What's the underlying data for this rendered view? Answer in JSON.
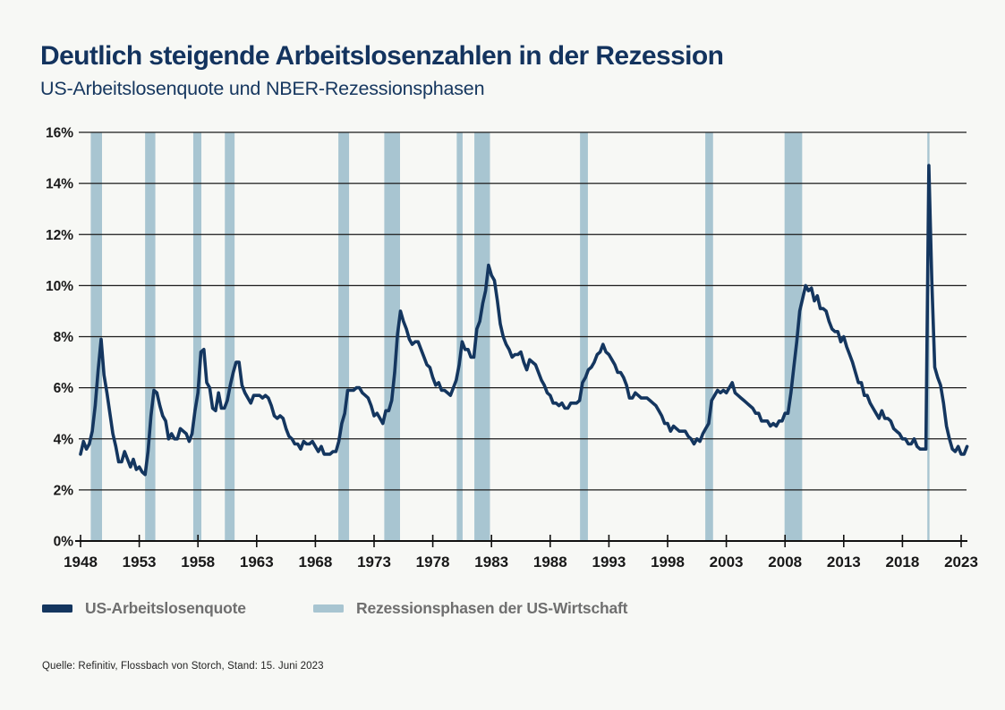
{
  "chart_data": {
    "type": "line",
    "title": "Deutlich steigende Arbeitslosenzahlen in der Rezession",
    "subtitle": "US-Arbeitslosenquote und NBER-Rezessionsphasen",
    "source": "Quelle: Refinitiv, Flossbach von Storch, Stand: 15. Juni 2023",
    "xlabel": "",
    "ylabel": "",
    "xlim": [
      1948,
      2023.6
    ],
    "ylim": [
      0,
      16
    ],
    "grid": "horizontal",
    "legend_position": "bottom-left",
    "x_ticks": [
      1948,
      1953,
      1958,
      1963,
      1968,
      1973,
      1978,
      1983,
      1988,
      1993,
      1998,
      2003,
      2008,
      2013,
      2018,
      2023
    ],
    "y_ticks": [
      0,
      2,
      4,
      6,
      8,
      10,
      12,
      14,
      16
    ],
    "y_tick_suffix": "%",
    "colors": {
      "line": "#14365f",
      "recession_band": "#a8c5d1",
      "grid": "#1a1a1a",
      "axis": "#111111",
      "tick_label": "#181818",
      "title": "#13335e",
      "legend_text": "#6f6f6f",
      "background": "#f7f8f5"
    },
    "legend": [
      {
        "label": "US-Arbeitslosenquote",
        "color": "#14365f",
        "kind": "line"
      },
      {
        "label": "Rezessionsphasen der US-Wirtschaft",
        "color": "#a8c5d1",
        "kind": "band"
      }
    ],
    "recessions": [
      {
        "start": 1948.87,
        "end": 1949.83
      },
      {
        "start": 1953.5,
        "end": 1954.37
      },
      {
        "start": 1957.6,
        "end": 1958.29
      },
      {
        "start": 1960.29,
        "end": 1961.12
      },
      {
        "start": 1969.96,
        "end": 1970.87
      },
      {
        "start": 1973.87,
        "end": 1975.21
      },
      {
        "start": 1980.04,
        "end": 1980.54
      },
      {
        "start": 1981.54,
        "end": 1982.87
      },
      {
        "start": 1990.54,
        "end": 1991.21
      },
      {
        "start": 2001.21,
        "end": 2001.87
      },
      {
        "start": 2007.96,
        "end": 2009.46
      },
      {
        "start": 2020.12,
        "end": 2020.29
      }
    ],
    "series": [
      {
        "name": "US-Arbeitslosenquote",
        "unit": "%",
        "x_start": 1948.0,
        "x_step": 0.25,
        "values": [
          3.4,
          3.9,
          3.6,
          3.8,
          4.3,
          5.3,
          6.7,
          7.9,
          6.5,
          5.8,
          5.0,
          4.2,
          3.7,
          3.1,
          3.1,
          3.5,
          3.2,
          2.9,
          3.2,
          2.8,
          2.9,
          2.7,
          2.6,
          3.5,
          4.9,
          5.9,
          5.8,
          5.3,
          4.9,
          4.7,
          4.0,
          4.2,
          4.0,
          4.0,
          4.4,
          4.3,
          4.2,
          3.9,
          4.2,
          5.1,
          5.8,
          7.4,
          7.5,
          6.2,
          6.0,
          5.2,
          5.1,
          5.8,
          5.2,
          5.2,
          5.5,
          6.1,
          6.6,
          7.0,
          7.0,
          6.1,
          5.8,
          5.6,
          5.4,
          5.7,
          5.7,
          5.7,
          5.6,
          5.7,
          5.6,
          5.3,
          4.9,
          4.8,
          4.9,
          4.8,
          4.4,
          4.1,
          4.0,
          3.8,
          3.8,
          3.6,
          3.9,
          3.8,
          3.8,
          3.9,
          3.7,
          3.5,
          3.7,
          3.4,
          3.4,
          3.4,
          3.5,
          3.5,
          3.9,
          4.6,
          5.0,
          5.9,
          5.9,
          5.9,
          6.0,
          6.0,
          5.8,
          5.7,
          5.6,
          5.3,
          4.9,
          5.0,
          4.8,
          4.6,
          5.1,
          5.1,
          5.5,
          6.6,
          8.1,
          9.0,
          8.6,
          8.3,
          7.9,
          7.7,
          7.8,
          7.8,
          7.5,
          7.2,
          6.9,
          6.8,
          6.4,
          6.1,
          6.2,
          5.9,
          5.9,
          5.8,
          5.7,
          6.0,
          6.3,
          6.9,
          7.8,
          7.5,
          7.5,
          7.2,
          7.2,
          8.3,
          8.6,
          9.3,
          9.8,
          10.8,
          10.4,
          10.2,
          9.4,
          8.5,
          8.0,
          7.7,
          7.5,
          7.2,
          7.3,
          7.3,
          7.4,
          7.0,
          6.7,
          7.1,
          7.0,
          6.9,
          6.6,
          6.3,
          6.1,
          5.8,
          5.7,
          5.4,
          5.4,
          5.3,
          5.4,
          5.2,
          5.2,
          5.4,
          5.4,
          5.4,
          5.5,
          6.2,
          6.4,
          6.7,
          6.8,
          7.0,
          7.3,
          7.4,
          7.7,
          7.4,
          7.3,
          7.1,
          6.9,
          6.6,
          6.6,
          6.4,
          6.1,
          5.6,
          5.6,
          5.8,
          5.7,
          5.6,
          5.6,
          5.6,
          5.5,
          5.4,
          5.3,
          5.1,
          4.9,
          4.6,
          4.6,
          4.3,
          4.5,
          4.4,
          4.3,
          4.3,
          4.3,
          4.1,
          4.0,
          3.8,
          4.0,
          3.9,
          4.2,
          4.4,
          4.6,
          5.5,
          5.7,
          5.9,
          5.8,
          5.9,
          5.8,
          6.0,
          6.2,
          5.8,
          5.7,
          5.6,
          5.5,
          5.4,
          5.3,
          5.2,
          5.0,
          5.0,
          4.7,
          4.7,
          4.7,
          4.5,
          4.6,
          4.5,
          4.7,
          4.7,
          5.0,
          5.0,
          5.8,
          6.8,
          7.8,
          9.0,
          9.5,
          10.0,
          9.8,
          9.9,
          9.4,
          9.6,
          9.1,
          9.1,
          9.0,
          8.6,
          8.3,
          8.2,
          8.2,
          7.8,
          8.0,
          7.6,
          7.3,
          7.0,
          6.6,
          6.2,
          6.2,
          5.7,
          5.7,
          5.4,
          5.2,
          5.0,
          4.8,
          5.1,
          4.8,
          4.8,
          4.7,
          4.4,
          4.3,
          4.2,
          4.0,
          4.0,
          3.8,
          3.8,
          4.0,
          3.7,
          3.6,
          3.6,
          3.6,
          14.7,
          10.2,
          6.8,
          6.4,
          6.1,
          5.4,
          4.5,
          4.0,
          3.6,
          3.5,
          3.7,
          3.4,
          3.4,
          3.7
        ]
      }
    ]
  }
}
